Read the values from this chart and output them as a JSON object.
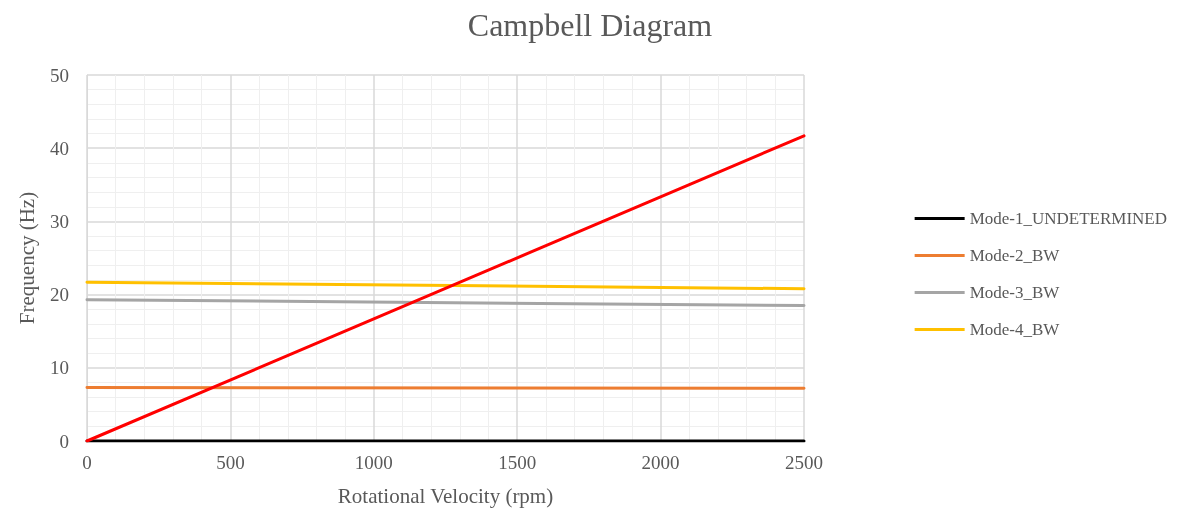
{
  "chart_data": {
    "type": "line",
    "title": "Campbell Diagram",
    "xlabel": "Rotational Velocity (rpm)",
    "ylabel": "Frequency (Hz)",
    "x": [
      0,
      2500
    ],
    "xlim": [
      0,
      2500
    ],
    "xticks": [
      0,
      500,
      1000,
      1500,
      2000,
      2500
    ],
    "ylim": [
      0,
      50
    ],
    "yticks": [
      0,
      10,
      20,
      30,
      40,
      50
    ],
    "grid": true,
    "legend": "right",
    "marker": "none",
    "line_style": "solid",
    "series": [
      {
        "name": "Mode-1_UNDETERMINED",
        "color": "#000000",
        "values": [
          0,
          0
        ]
      },
      {
        "name": "Mode-2_BW",
        "color": "#ed7d31",
        "values": [
          7.3,
          7.2
        ]
      },
      {
        "name": "Mode-3_BW",
        "color": "#a5a5a5",
        "values": [
          19.3,
          18.5
        ]
      },
      {
        "name": "Mode-4_BW",
        "color": "#ffc000",
        "values": [
          21.7,
          20.8
        ]
      },
      {
        "color": "#ff0000",
        "values": [
          0,
          41.7
        ]
      }
    ]
  }
}
